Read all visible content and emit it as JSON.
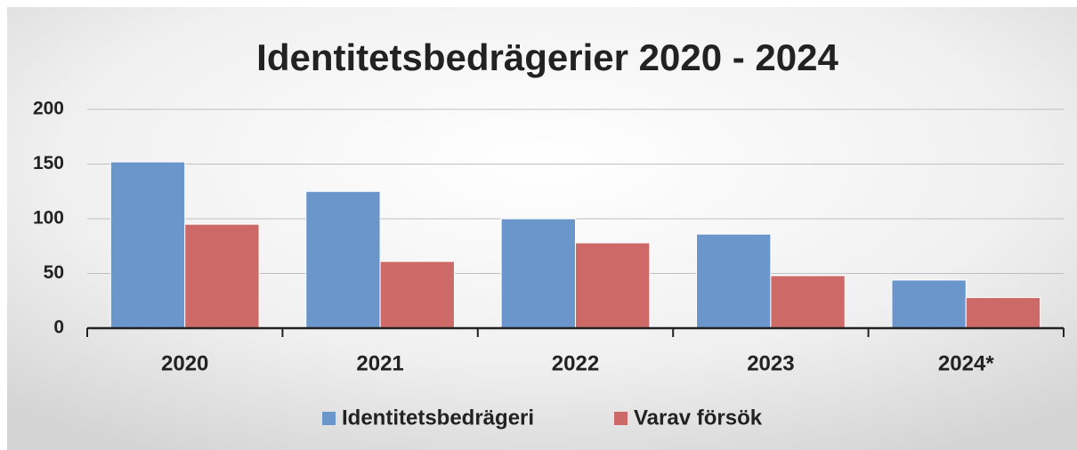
{
  "chart_data": {
    "type": "bar",
    "title": "Identitetsbedrägerier 2020 - 2024",
    "categories": [
      "2020",
      "2021",
      "2022",
      "2023",
      "2024*"
    ],
    "series": [
      {
        "name": "Identitetsbedrägeri",
        "color": "#6a96cc",
        "values": [
          152,
          125,
          100,
          86,
          44
        ]
      },
      {
        "name": "Varav försök",
        "color": "#cd6a68",
        "values": [
          95,
          61,
          78,
          48,
          28
        ]
      }
    ],
    "ylim": [
      0,
      200
    ],
    "yticks": [
      0,
      50,
      100,
      150,
      200
    ],
    "grid": true,
    "legend": "bottom"
  }
}
